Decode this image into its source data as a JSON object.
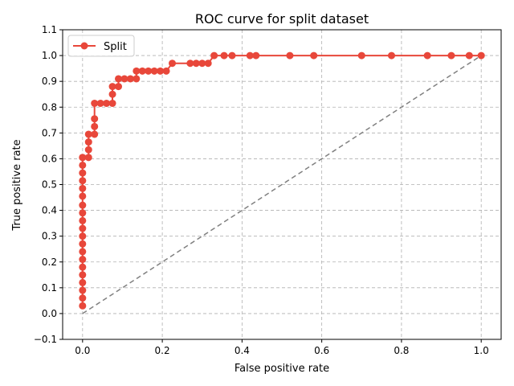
{
  "chart_data": {
    "type": "line",
    "title": "ROC curve for split dataset",
    "xlabel": "False positive rate",
    "ylabel": "True positive rate",
    "xlim": [
      -0.05,
      1.05
    ],
    "ylim": [
      -0.1,
      1.1
    ],
    "xticks": [
      "0.0",
      "0.2",
      "0.4",
      "0.6",
      "0.8",
      "1.0"
    ],
    "yticks": [
      "−0.1",
      "0.0",
      "0.1",
      "0.2",
      "0.3",
      "0.4",
      "0.5",
      "0.6",
      "0.7",
      "0.8",
      "0.9",
      "1.0",
      "1.1"
    ],
    "grid": true,
    "legend_position": "upper-left",
    "series": [
      {
        "name": "Split",
        "color": "#e8473a",
        "marker": "circle",
        "x": [
          0.0,
          0.0,
          0.0,
          0.0,
          0.0,
          0.0,
          0.0,
          0.0,
          0.0,
          0.0,
          0.0,
          0.0,
          0.0,
          0.0,
          0.0,
          0.0,
          0.0,
          0.0,
          0.0,
          0.0,
          0.0,
          0.015,
          0.015,
          0.015,
          0.015,
          0.03,
          0.03,
          0.03,
          0.03,
          0.045,
          0.06,
          0.075,
          0.075,
          0.075,
          0.09,
          0.09,
          0.105,
          0.12,
          0.135,
          0.135,
          0.15,
          0.165,
          0.18,
          0.195,
          0.21,
          0.225,
          0.27,
          0.285,
          0.3,
          0.315,
          0.33,
          0.355,
          0.375,
          0.42,
          0.435,
          0.52,
          0.58,
          0.7,
          0.775,
          0.865,
          0.925,
          0.97,
          1.0
        ],
        "y": [
          0.03,
          0.06,
          0.09,
          0.12,
          0.15,
          0.18,
          0.21,
          0.24,
          0.27,
          0.3,
          0.33,
          0.36,
          0.39,
          0.42,
          0.455,
          0.485,
          0.515,
          0.545,
          0.575,
          0.605,
          0.605,
          0.605,
          0.635,
          0.665,
          0.695,
          0.695,
          0.725,
          0.755,
          0.815,
          0.815,
          0.815,
          0.815,
          0.85,
          0.88,
          0.88,
          0.91,
          0.91,
          0.91,
          0.91,
          0.94,
          0.94,
          0.94,
          0.94,
          0.94,
          0.94,
          0.97,
          0.97,
          0.97,
          0.97,
          0.97,
          1.0,
          1.0,
          1.0,
          1.0,
          1.0,
          1.0,
          1.0,
          1.0,
          1.0,
          1.0,
          1.0,
          1.0,
          1.0
        ]
      }
    ],
    "reference_line": {
      "x": [
        0.0,
        1.0
      ],
      "y": [
        0.0,
        1.0
      ],
      "color": "#808080",
      "style": "dashed"
    }
  }
}
